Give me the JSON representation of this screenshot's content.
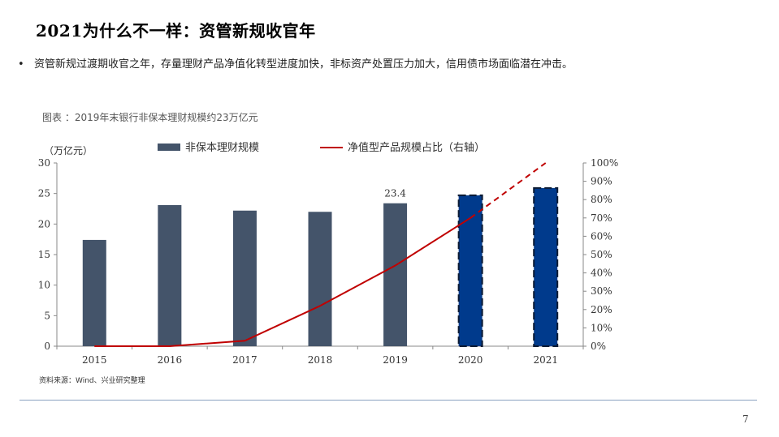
{
  "slide": {
    "title": "2021为什么不一样：资管新规收官年",
    "bullet": "资管新规过渡期收官之年，存量理财产品净值化转型进度加快，非标资产处置压力加大，信用债市场面临潜在冲击。",
    "bullet_symbol": "•",
    "chart_caption": "图表 ：2019年末银行非保本理财规模约23万亿元",
    "source": "资料来源：Wind、兴业研究整理",
    "page_number": "7"
  },
  "chart_data": {
    "type": "bar",
    "categories": [
      "2015",
      "2016",
      "2017",
      "2018",
      "2019",
      "2020",
      "2021"
    ],
    "ylabel": "（万亿元）",
    "ylim": [
      0,
      30
    ],
    "yticks": [
      "0",
      "5",
      "10",
      "15",
      "20",
      "25",
      "30"
    ],
    "y2lim": [
      0,
      100
    ],
    "y2ticks": [
      "0%",
      "10%",
      "20%",
      "30%",
      "40%",
      "50%",
      "60%",
      "70%",
      "80%",
      "90%",
      "100%"
    ],
    "series": [
      {
        "name": "非保本理财规模",
        "type": "bar",
        "axis": "left",
        "values": [
          17.4,
          23.1,
          22.2,
          22.0,
          23.4,
          24.7,
          25.9
        ],
        "color": "#44546a",
        "projected_color": "#003a8c",
        "projected_categories": [
          "2020",
          "2021"
        ]
      },
      {
        "name": "净值型产品规模占比（右轴）",
        "type": "line",
        "axis": "right",
        "values": [
          0,
          0,
          3,
          22,
          44,
          70,
          100
        ],
        "color": "#c00000",
        "projected_categories": [
          "2021"
        ]
      }
    ],
    "annotations": [
      {
        "category": "2019",
        "text": "23.4"
      }
    ],
    "legend_placement": "top",
    "grid": false
  }
}
